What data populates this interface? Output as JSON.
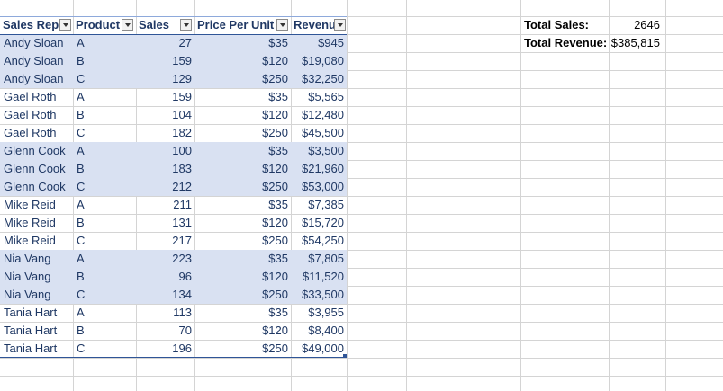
{
  "headers": [
    "Sales Rep",
    "Product",
    "Sales",
    "Price Per Unit",
    "Revenu"
  ],
  "rows": [
    {
      "rep": "Andy Sloan",
      "product": "A",
      "sales": "27",
      "price": "$35",
      "revenue": "$945"
    },
    {
      "rep": "Andy Sloan",
      "product": "B",
      "sales": "159",
      "price": "$120",
      "revenue": "$19,080"
    },
    {
      "rep": "Andy Sloan",
      "product": "C",
      "sales": "129",
      "price": "$250",
      "revenue": "$32,250"
    },
    {
      "rep": "Gael Roth",
      "product": "A",
      "sales": "159",
      "price": "$35",
      "revenue": "$5,565"
    },
    {
      "rep": "Gael Roth",
      "product": "B",
      "sales": "104",
      "price": "$120",
      "revenue": "$12,480"
    },
    {
      "rep": "Gael Roth",
      "product": "C",
      "sales": "182",
      "price": "$250",
      "revenue": "$45,500"
    },
    {
      "rep": "Glenn Cook",
      "product": "A",
      "sales": "100",
      "price": "$35",
      "revenue": "$3,500"
    },
    {
      "rep": "Glenn Cook",
      "product": "B",
      "sales": "183",
      "price": "$120",
      "revenue": "$21,960"
    },
    {
      "rep": "Glenn Cook",
      "product": "C",
      "sales": "212",
      "price": "$250",
      "revenue": "$53,000"
    },
    {
      "rep": "Mike Reid",
      "product": "A",
      "sales": "211",
      "price": "$35",
      "revenue": "$7,385"
    },
    {
      "rep": "Mike Reid",
      "product": "B",
      "sales": "131",
      "price": "$120",
      "revenue": "$15,720"
    },
    {
      "rep": "Mike Reid",
      "product": "C",
      "sales": "217",
      "price": "$250",
      "revenue": "$54,250"
    },
    {
      "rep": "Nia Vang",
      "product": "A",
      "sales": "223",
      "price": "$35",
      "revenue": "$7,805"
    },
    {
      "rep": "Nia Vang",
      "product": "B",
      "sales": "96",
      "price": "$120",
      "revenue": "$11,520"
    },
    {
      "rep": "Nia Vang",
      "product": "C",
      "sales": "134",
      "price": "$250",
      "revenue": "$33,500"
    },
    {
      "rep": "Tania Hart",
      "product": "A",
      "sales": "113",
      "price": "$35",
      "revenue": "$3,955"
    },
    {
      "rep": "Tania Hart",
      "product": "B",
      "sales": "70",
      "price": "$120",
      "revenue": "$8,400"
    },
    {
      "rep": "Tania Hart",
      "product": "C",
      "sales": "196",
      "price": "$250",
      "revenue": "$49,000"
    }
  ],
  "summary": {
    "total_sales_label": "Total Sales:",
    "total_sales_value": "2646",
    "total_revenue_label": "Total Revenue:",
    "total_revenue_value": "$385,815"
  },
  "colors": {
    "band": "#d9e1f2",
    "header_text": "#203864",
    "table_border": "#2f5597"
  },
  "icons": [
    "filter-dropdown-icon"
  ]
}
